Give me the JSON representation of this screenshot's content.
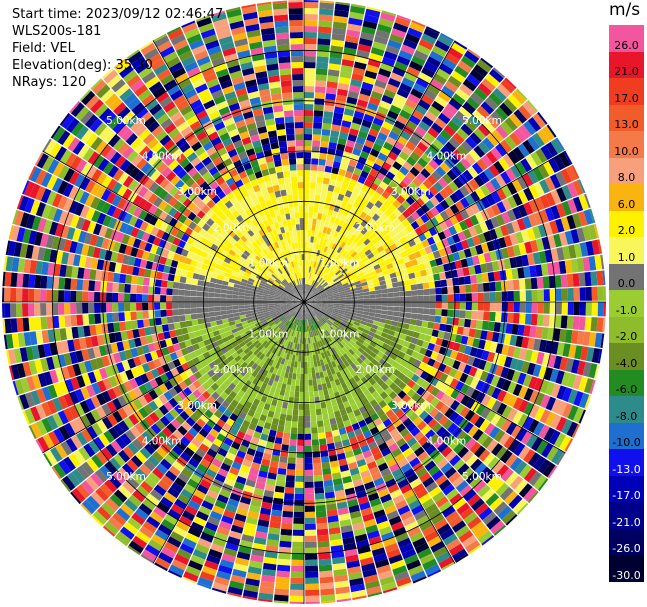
{
  "header": {
    "start_time": "Start time: 2023/09/12 02:46:47",
    "instrument": "WLS200s-181",
    "field": "Field: VEL",
    "elevation": "Elevation(deg): 35.30",
    "nrays": "NRays: 120"
  },
  "colorbar": {
    "title": "m/s",
    "levels": [
      {
        "label": "26.0",
        "color": "#f2569e",
        "text": "#000000"
      },
      {
        "label": "21.0",
        "color": "#e8152b",
        "text": "#000000"
      },
      {
        "label": "17.0",
        "color": "#f03d1f",
        "text": "#000000"
      },
      {
        "label": "13.0",
        "color": "#f25c2a",
        "text": "#000000"
      },
      {
        "label": "10.0",
        "color": "#f47a4a",
        "text": "#000000"
      },
      {
        "label": "8.0",
        "color": "#f8a07c",
        "text": "#000000"
      },
      {
        "label": "6.0",
        "color": "#f9b40f",
        "text": "#000000"
      },
      {
        "label": "2.0",
        "color": "#fff200",
        "text": "#000000"
      },
      {
        "label": "1.0",
        "color": "#f8f65a",
        "text": "#000000"
      },
      {
        "label": "0.0",
        "color": "#737373",
        "text": "#000000"
      },
      {
        "label": "-1.0",
        "color": "#9acd32",
        "text": "#000000"
      },
      {
        "label": "-2.0",
        "color": "#8fbc2a",
        "text": "#000000"
      },
      {
        "label": "-4.0",
        "color": "#6b8e23",
        "text": "#000000"
      },
      {
        "label": "-6.0",
        "color": "#228b22",
        "text": "#000000"
      },
      {
        "label": "-8.0",
        "color": "#2e8b8b",
        "text": "#000000"
      },
      {
        "label": "-10.0",
        "color": "#1e6fd0",
        "text": "#000000"
      },
      {
        "label": "-13.0",
        "color": "#1010ee",
        "text": "#ffffff"
      },
      {
        "label": "-17.0",
        "color": "#0000b8",
        "text": "#ffffff"
      },
      {
        "label": "-21.0",
        "color": "#00008b",
        "text": "#ffffff"
      },
      {
        "label": "-26.0",
        "color": "#000060",
        "text": "#ffffff"
      },
      {
        "label": "-30.0",
        "color": "#000030",
        "text": "#ffffff"
      }
    ]
  },
  "chart_data": {
    "type": "heatmap",
    "projection": "polar PPI",
    "field": "VEL",
    "units": "m/s",
    "n_rays": 120,
    "elevation_deg": 35.3,
    "range_rings_km": [
      1.0,
      2.0,
      3.0,
      4.0,
      5.0
    ],
    "ring_labels": [
      "1.00km",
      "2.00km",
      "3.00km",
      "4.00km",
      "5.00km"
    ],
    "max_range_km": 6.0,
    "spokes_deg": [
      0,
      30,
      60,
      90,
      120,
      150,
      180,
      210,
      240,
      270,
      300,
      330
    ],
    "valid_data_extent_km": 2.6,
    "pattern": {
      "north_sector_deg": [
        285,
        75
      ],
      "north_sector_value_range": [
        1.0,
        6.0
      ],
      "east_west_band_value": 0.0,
      "south_sector_value_range": [
        -6.0,
        -1.0
      ],
      "beyond_extent": "noise spanning full color range"
    }
  }
}
